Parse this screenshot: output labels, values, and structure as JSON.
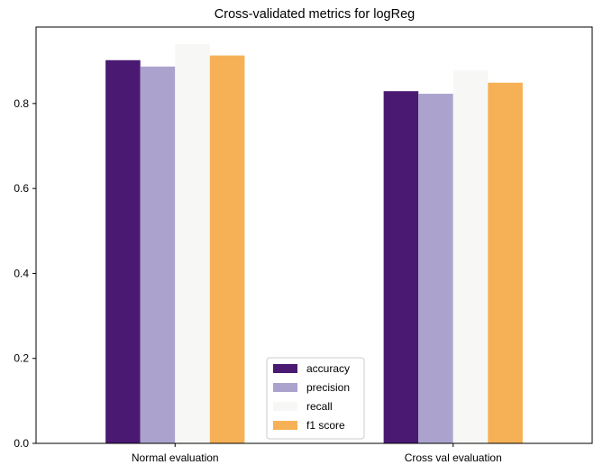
{
  "chart_data": {
    "type": "bar",
    "title": "Cross-validated metrics for logReg",
    "xlabel": "",
    "ylabel": "",
    "categories": [
      "Normal evaluation",
      "Cross val evaluation"
    ],
    "series": [
      {
        "name": "accuracy",
        "color": "#4a1a73",
        "values": [
          0.902,
          0.829
        ]
      },
      {
        "name": "precision",
        "color": "#aba3cd",
        "values": [
          0.887,
          0.823
        ]
      },
      {
        "name": "recall",
        "color": "#f7f7f6",
        "values": [
          0.94,
          0.878
        ]
      },
      {
        "name": "f1 score",
        "color": "#f6b156",
        "values": [
          0.913,
          0.849
        ]
      }
    ],
    "ylim": [
      0,
      0.98
    ],
    "yticks": [
      0.0,
      0.2,
      0.4,
      0.6,
      0.8
    ],
    "ytick_labels": [
      "0.0",
      "0.2",
      "0.4",
      "0.6",
      "0.8"
    ],
    "grid": false,
    "legend_position": "bottom-center"
  }
}
